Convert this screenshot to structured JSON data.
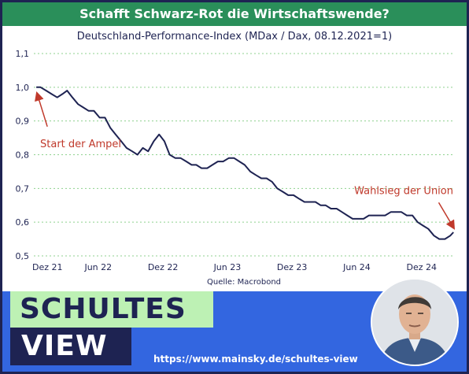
{
  "header": {
    "title": "Schafft Schwarz-Rot die Wirtschaftswende?",
    "subtitle": "Deutschland-Performance-Index (MDax / Dax, 08.12.2021=1)"
  },
  "source": "Quelle: Macrobond",
  "brand": {
    "line1": "SCHULTES",
    "line2": "VIEW",
    "url": "https://www.mainsky.de/schultes-view"
  },
  "colors": {
    "title_bg": "#2a8f5a",
    "line": "#1e2352",
    "annotation": "#c0392b",
    "grid": "#8fd18f",
    "brand_blue": "#3366e0",
    "brand_green": "#bdf1b4",
    "brand_navy": "#1e2352"
  },
  "chart_data": {
    "type": "line",
    "title": "Deutschland-Performance-Index (MDax / Dax, 08.12.2021=1)",
    "xlabel": "",
    "ylabel": "",
    "ylim": [
      0.5,
      1.1
    ],
    "y_ticks": [
      "0,5",
      "0,6",
      "0,7",
      "0,8",
      "0,9",
      "1,0",
      "1,1"
    ],
    "y_tick_values": [
      0.5,
      0.6,
      0.7,
      0.8,
      0.9,
      1.0,
      1.1
    ],
    "x_tick_labels": [
      "Dez 21",
      "Jun 22",
      "Dez 22",
      "Jun 23",
      "Dez 23",
      "Jun 24",
      "Dez 24"
    ],
    "x_tick_dates": [
      "2021-12-01",
      "2022-06-01",
      "2022-12-01",
      "2023-06-01",
      "2023-12-01",
      "2024-06-01",
      "2024-12-01"
    ],
    "xlim": [
      "2021-12-01",
      "2025-03-05"
    ],
    "grid": "horizontal dotted",
    "series": [
      {
        "x": [
          "2021-12-08",
          "2021-12-20",
          "2022-01-05",
          "2022-01-20",
          "2022-02-05",
          "2022-02-20",
          "2022-03-05",
          "2022-03-20",
          "2022-04-05",
          "2022-04-20",
          "2022-05-05",
          "2022-05-20",
          "2022-06-05",
          "2022-06-20",
          "2022-07-05",
          "2022-07-20",
          "2022-08-05",
          "2022-08-20",
          "2022-09-05",
          "2022-09-20",
          "2022-10-05",
          "2022-10-20",
          "2022-11-05",
          "2022-11-20",
          "2022-12-05",
          "2022-12-20",
          "2023-01-05",
          "2023-01-20",
          "2023-02-05",
          "2023-02-20",
          "2023-03-05",
          "2023-03-20",
          "2023-04-05",
          "2023-04-20",
          "2023-05-05",
          "2023-05-20",
          "2023-06-05",
          "2023-06-20",
          "2023-07-05",
          "2023-07-20",
          "2023-08-05",
          "2023-08-20",
          "2023-09-05",
          "2023-09-20",
          "2023-10-05",
          "2023-10-20",
          "2023-11-05",
          "2023-11-20",
          "2023-12-05",
          "2023-12-20",
          "2024-01-05",
          "2024-01-20",
          "2024-02-05",
          "2024-02-20",
          "2024-03-05",
          "2024-03-20",
          "2024-04-05",
          "2024-04-20",
          "2024-05-05",
          "2024-05-20",
          "2024-06-05",
          "2024-06-20",
          "2024-07-05",
          "2024-07-20",
          "2024-08-05",
          "2024-08-20",
          "2024-09-05",
          "2024-09-20",
          "2024-10-05",
          "2024-10-20",
          "2024-11-05",
          "2024-11-20",
          "2024-12-05",
          "2024-12-20",
          "2025-01-05",
          "2025-01-20",
          "2025-02-05",
          "2025-02-20",
          "2025-03-01"
        ],
        "values": [
          1.0,
          1.0,
          0.99,
          0.98,
          0.97,
          0.98,
          0.99,
          0.97,
          0.95,
          0.94,
          0.93,
          0.93,
          0.91,
          0.91,
          0.88,
          0.86,
          0.84,
          0.82,
          0.81,
          0.8,
          0.82,
          0.81,
          0.84,
          0.86,
          0.84,
          0.8,
          0.79,
          0.79,
          0.78,
          0.77,
          0.77,
          0.76,
          0.76,
          0.77,
          0.78,
          0.78,
          0.79,
          0.79,
          0.78,
          0.77,
          0.75,
          0.74,
          0.73,
          0.73,
          0.72,
          0.7,
          0.69,
          0.68,
          0.68,
          0.67,
          0.66,
          0.66,
          0.66,
          0.65,
          0.65,
          0.64,
          0.64,
          0.63,
          0.62,
          0.61,
          0.61,
          0.61,
          0.62,
          0.62,
          0.62,
          0.62,
          0.63,
          0.63,
          0.63,
          0.62,
          0.62,
          0.6,
          0.59,
          0.58,
          0.56,
          0.55,
          0.55,
          0.56,
          0.57
        ]
      }
    ],
    "annotations": [
      {
        "text": "Start der Ampel",
        "date": "2021-12-08",
        "value": 1.0
      },
      {
        "text": "Wahlsieg der Union",
        "date": "2025-02-23",
        "value": 0.56
      }
    ]
  }
}
